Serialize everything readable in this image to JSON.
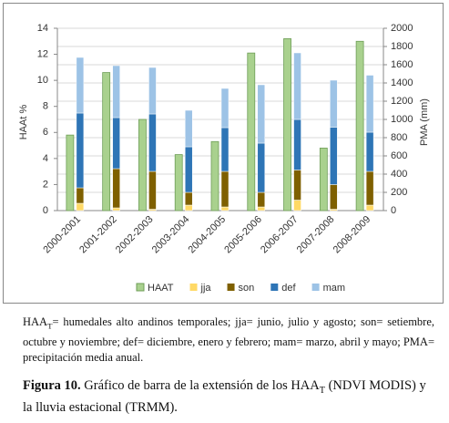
{
  "chart_data": {
    "type": "bar",
    "categories": [
      "2000-2001",
      "2001-2002",
      "2002-2003",
      "2003-2004",
      "2004-2005",
      "2005-2006",
      "2006-2007",
      "2007-2008",
      "2008-2009"
    ],
    "series": [
      {
        "name": "HAAT",
        "color": "#a9d18e",
        "values": [
          5.8,
          10.6,
          7.0,
          4.3,
          5.3,
          12.1,
          13.2,
          4.8,
          13.0
        ]
      },
      {
        "name": "jja",
        "color": "#ffd966",
        "axis": "y2",
        "values": [
          80,
          30,
          15,
          60,
          40,
          40,
          115,
          15,
          60
        ]
      },
      {
        "name": "son",
        "color": "#7f6000",
        "axis": "y2",
        "values": [
          170,
          430,
          415,
          140,
          390,
          160,
          330,
          270,
          370
        ]
      },
      {
        "name": "def",
        "color": "#2e75b6",
        "axis": "y2",
        "values": [
          820,
          560,
          630,
          500,
          480,
          540,
          555,
          630,
          430
        ]
      },
      {
        "name": "mam",
        "color": "#9dc3e6",
        "axis": "y2",
        "values": [
          610,
          570,
          510,
          400,
          430,
          640,
          730,
          515,
          625
        ]
      }
    ],
    "ylabel": "HAAt %",
    "y2label": "PMA (mm)",
    "ylim": [
      0,
      14
    ],
    "yticks": [
      0,
      2,
      4,
      6,
      8,
      10,
      12,
      14
    ],
    "y2lim": [
      0,
      2000
    ],
    "y2ticks": [
      0,
      200,
      400,
      600,
      800,
      1000,
      1200,
      1400,
      1600,
      1800,
      2000
    ],
    "grid": true,
    "stacked": true,
    "legend": "bottom"
  },
  "notes": {
    "prefix": "HAA",
    "subscript": "T",
    "text": "= humedales alto andinos temporales; jja= junio, julio y agosto; son= setiembre, octubre y noviembre; def= diciembre, enero y febrero; mam= marzo, abril y mayo; PMA= precipitación media anual."
  },
  "caption": {
    "label": "Figura 10.",
    "text": " Gráfico de barra de la extensión de los HAA",
    "subscript": "T",
    "rest": " (NDVI MODIS) y la lluvia estacional (TRMM)."
  }
}
